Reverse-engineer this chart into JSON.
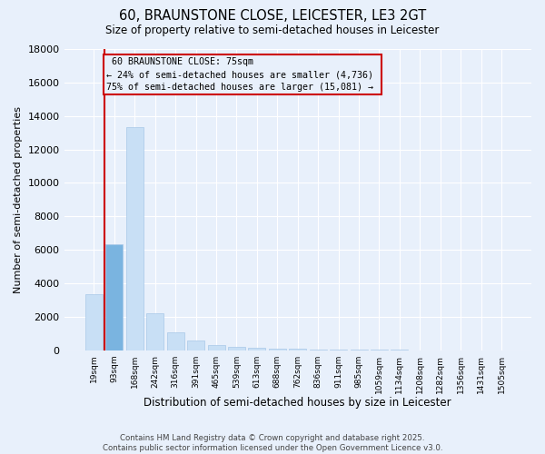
{
  "title_line1": "60, BRAUNSTONE CLOSE, LEICESTER, LE3 2GT",
  "title_line2": "Size of property relative to semi-detached houses in Leicester",
  "xlabel": "Distribution of semi-detached houses by size in Leicester",
  "ylabel": "Number of semi-detached properties",
  "property_label": "60 BRAUNSTONE CLOSE: 75sqm",
  "annotation_smaller": "← 24% of semi-detached houses are smaller (4,736)",
  "annotation_larger": "75% of semi-detached houses are larger (15,081) →",
  "bar_color_normal": "#c8dff5",
  "bar_color_highlight": "#7ab4e0",
  "bar_edge_color": "#a8c8e8",
  "vline_color": "#cc0000",
  "annotation_box_facecolor": "#e8f0fb",
  "annotation_box_edgecolor": "#cc0000",
  "background_color": "#e8f0fb",
  "grid_color": "#ffffff",
  "categories": [
    "19sqm",
    "93sqm",
    "168sqm",
    "242sqm",
    "316sqm",
    "391sqm",
    "465sqm",
    "539sqm",
    "613sqm",
    "688sqm",
    "762sqm",
    "836sqm",
    "911sqm",
    "985sqm",
    "1059sqm",
    "1134sqm",
    "1208sqm",
    "1282sqm",
    "1356sqm",
    "1431sqm",
    "1505sqm"
  ],
  "values": [
    3350,
    6350,
    13350,
    2200,
    1100,
    580,
    330,
    190,
    140,
    95,
    75,
    55,
    45,
    38,
    28,
    22,
    18,
    13,
    10,
    8,
    6
  ],
  "highlight_bar_index": 1,
  "ylim": [
    0,
    18000
  ],
  "yticks": [
    0,
    2000,
    4000,
    6000,
    8000,
    10000,
    12000,
    14000,
    16000,
    18000
  ],
  "vline_x": 0.5,
  "footer_line1": "Contains HM Land Registry data © Crown copyright and database right 2025.",
  "footer_line2": "Contains public sector information licensed under the Open Government Licence v3.0."
}
